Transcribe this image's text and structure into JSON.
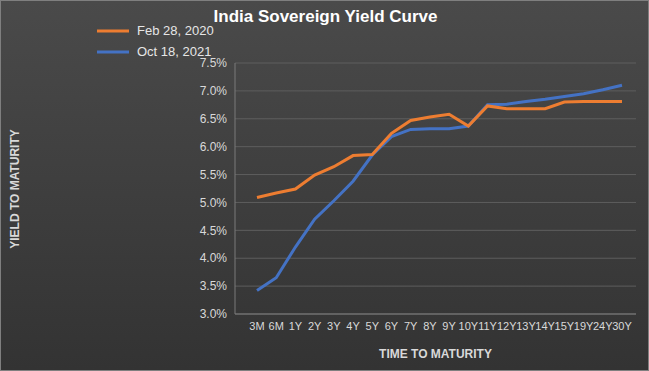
{
  "chart_data": {
    "type": "line",
    "title": "India Sovereign Yield Curve",
    "x_label": "TIME TO MATURITY",
    "y_label": "YIELD TO MATURITY",
    "categories": [
      "3M",
      "6M",
      "1Y",
      "2Y",
      "3Y",
      "4Y",
      "5Y",
      "6Y",
      "7Y",
      "8Y",
      "9Y",
      "10Y",
      "11Y",
      "12Y",
      "13Y",
      "14Y",
      "15Y",
      "19Y",
      "24Y",
      "30Y"
    ],
    "series": [
      {
        "name": "Oct 18, 2021",
        "color": "#4472c4",
        "values": [
          3.42,
          3.65,
          4.2,
          4.7,
          5.03,
          5.38,
          5.85,
          6.18,
          6.31,
          6.32,
          6.32,
          6.37,
          6.75,
          6.76,
          6.81,
          6.85,
          6.9,
          6.95,
          7.02,
          7.1
        ]
      },
      {
        "name": "Feb 28, 2020",
        "color": "#ed7d31",
        "values": [
          5.09,
          5.17,
          5.24,
          5.49,
          5.64,
          5.84,
          5.86,
          6.24,
          6.47,
          6.53,
          6.58,
          6.37,
          6.73,
          6.68,
          6.68,
          6.68,
          6.8,
          6.81,
          6.81,
          6.81
        ]
      }
    ],
    "ylim": [
      3,
      7.5
    ],
    "yticks": [
      {
        "value": 3,
        "label": "3.0%"
      },
      {
        "value": 3.5,
        "label": "3.5%"
      },
      {
        "value": 4,
        "label": "4.0%"
      },
      {
        "value": 4.5,
        "label": "4.5%"
      },
      {
        "value": 5,
        "label": "5.0%"
      },
      {
        "value": 5.5,
        "label": "5.5%"
      },
      {
        "value": 6,
        "label": "6.0%"
      },
      {
        "value": 6.5,
        "label": "6.5%"
      },
      {
        "value": 7,
        "label": "7.0%"
      },
      {
        "value": 7.5,
        "label": "7.5%"
      }
    ],
    "grid": true,
    "legend": "upper left",
    "marker": "none",
    "line_style": "solid"
  }
}
